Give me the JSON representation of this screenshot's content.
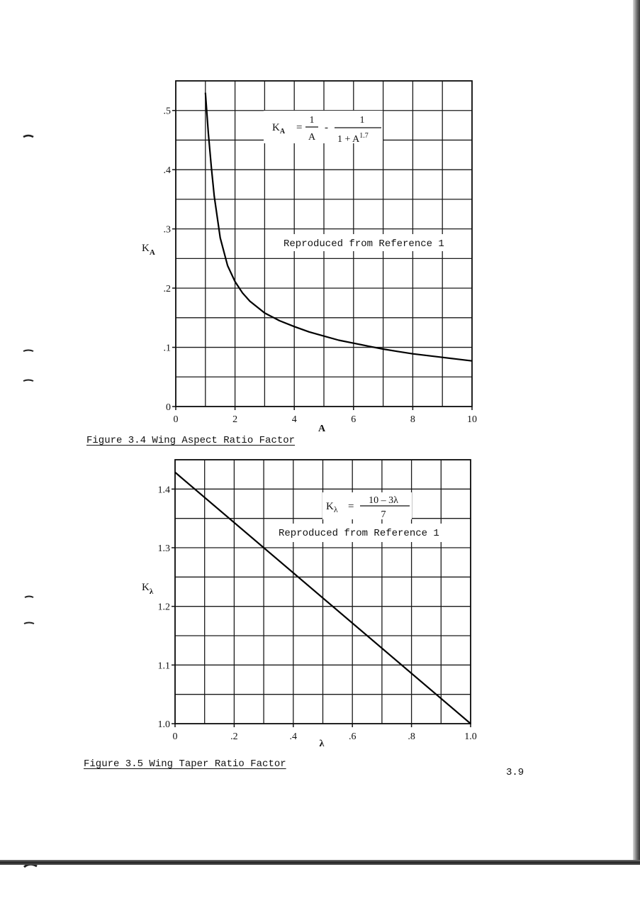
{
  "page_number": "3.9",
  "figures": [
    {
      "caption": "Figure 3.4  Wing Aspect Ratio Factor",
      "formula": {
        "lhs": "K",
        "lhs_sub": "A",
        "eq": "=",
        "term1_num": "1",
        "term1_den": "A",
        "minus": "-",
        "term2_num": "1",
        "term2_den": "1 + A",
        "term2_exp": "1.7"
      },
      "annotation": "Reproduced from Reference 1"
    },
    {
      "caption": "Figure 3.5  Wing Taper Ratio Factor",
      "formula": {
        "lhs": "K",
        "lhs_sub": "λ",
        "eq": "=",
        "num": "10 – 3λ",
        "den": "7"
      },
      "annotation": "Reproduced from Reference 1"
    }
  ],
  "chart_data": [
    {
      "type": "line",
      "title": "",
      "xlabel": "A",
      "ylabel": "K",
      "ylabel_sub": "A",
      "xlim": [
        0,
        10
      ],
      "ylim": [
        0,
        0.55
      ],
      "x_ticks": [
        0,
        2,
        4,
        6,
        8,
        10
      ],
      "x_tick_labels": [
        "0",
        "2",
        "4",
        "6",
        "8",
        "10"
      ],
      "y_ticks": [
        0,
        0.1,
        0.2,
        0.3,
        0.4,
        0.5
      ],
      "y_tick_labels": [
        "0",
        ".1",
        ".2",
        ".3",
        ".4",
        ".5"
      ],
      "x_grid_step": 1,
      "y_grid_step": 0.05,
      "grid": true,
      "series": [
        {
          "x": [
            1.0,
            1.1,
            1.2,
            1.3,
            1.5,
            1.75,
            2.0,
            2.25,
            2.5,
            3.0,
            3.5,
            4.0,
            4.5,
            5.0,
            5.5,
            6.0,
            6.5,
            7.0,
            7.5,
            8.0,
            8.5,
            9.0,
            9.5,
            10.0
          ],
          "y": [
            0.53,
            0.461,
            0.404,
            0.355,
            0.285,
            0.238,
            0.211,
            0.192,
            0.178,
            0.158,
            0.145,
            0.135,
            0.126,
            0.119,
            0.112,
            0.107,
            0.102,
            0.097,
            0.093,
            0.089,
            0.086,
            0.083,
            0.08,
            0.077
          ]
        }
      ]
    },
    {
      "type": "line",
      "title": "",
      "xlabel": "λ",
      "ylabel": "K",
      "ylabel_sub": "λ",
      "xlim": [
        0,
        1.0
      ],
      "ylim": [
        1.0,
        1.45
      ],
      "x_ticks": [
        0,
        0.2,
        0.4,
        0.6,
        0.8,
        1.0
      ],
      "x_tick_labels": [
        "0",
        ".2",
        ".4",
        ".6",
        ".8",
        "1.0"
      ],
      "y_ticks": [
        1.0,
        1.1,
        1.2,
        1.3,
        1.4
      ],
      "y_tick_labels": [
        "1.0",
        "1.1",
        "1.2",
        "1.3",
        "1.4"
      ],
      "x_grid_step": 0.1,
      "y_grid_step": 0.05,
      "grid": true,
      "series": [
        {
          "x": [
            0.0,
            1.0
          ],
          "y": [
            1.4286,
            1.0
          ]
        }
      ]
    }
  ]
}
